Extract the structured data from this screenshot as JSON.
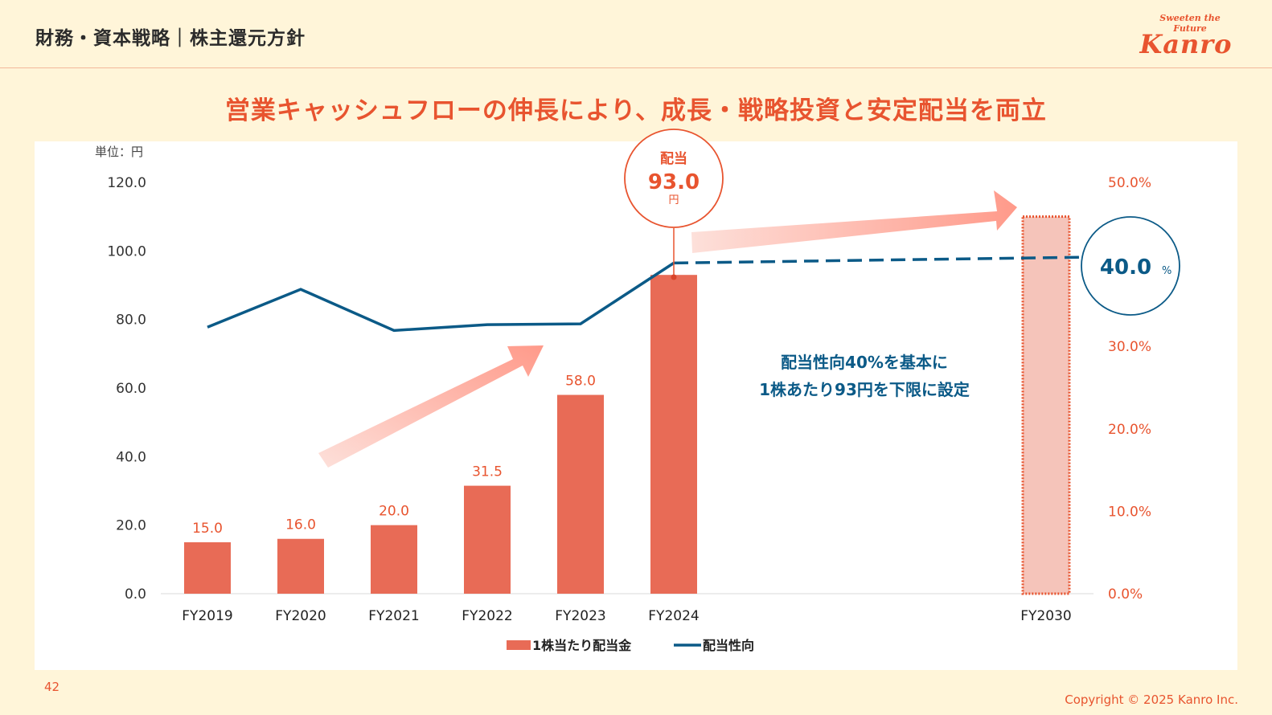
{
  "header": {
    "title": "財務・資本戦略｜株主還元方針",
    "logo_tagline": "Sweeten the Future",
    "logo_name": "Kanro"
  },
  "headline": "営業キャッシュフローの伸長により、成長・戦略投資と安定配当を両立",
  "chart_data": {
    "type": "bar",
    "title": "",
    "unit_label": "単位：円",
    "categories": [
      "FY2019",
      "FY2020",
      "FY2021",
      "FY2022",
      "FY2023",
      "FY2024",
      "FY2030"
    ],
    "series": [
      {
        "name": "1株当たり配当金",
        "type": "bar",
        "axis": "left",
        "color": "#e86b56",
        "values": [
          15.0,
          16.0,
          20.0,
          31.5,
          58.0,
          93.0,
          null
        ],
        "labels": [
          "15.0",
          "16.0",
          "20.0",
          "31.5",
          "58.0",
          "",
          ""
        ]
      },
      {
        "name": "配当性向",
        "type": "line",
        "axis": "right",
        "color": "#0b5a87",
        "values": [
          32.4,
          37.0,
          32.0,
          32.7,
          32.8,
          40.2,
          null
        ],
        "projection": {
          "from": "FY2024",
          "to": "FY2030",
          "values": [
            40.2,
            40.9
          ],
          "style": "dashed"
        }
      }
    ],
    "projected_bar": {
      "category": "FY2030",
      "value_pct_of_left_axis": 110.0,
      "style": "dotted-outline",
      "fill": "#f5c4ba",
      "stroke": "#e8542f"
    },
    "left_axis": {
      "ylim": [
        0,
        120
      ],
      "ticks": [
        "0.0",
        "20.0",
        "40.0",
        "60.0",
        "80.0",
        "100.0",
        "120.0"
      ]
    },
    "right_axis": {
      "ylim": [
        0,
        50
      ],
      "ticks": [
        "0.0%",
        "10.0%",
        "20.0%",
        "30.0%",
        "50.0%"
      ],
      "color": "#e8542f"
    },
    "legend": {
      "position": "bottom",
      "items": [
        "1株当たり配当金",
        "配当性向"
      ]
    },
    "annotations": {
      "dividend_callout": {
        "label": "配当",
        "value": "93.0",
        "unit": "円",
        "category": "FY2024"
      },
      "payout_callout": {
        "value": "40.0",
        "unit": "%"
      },
      "policy_text": [
        "配当性向40%を基本に",
        "1株あたり93円を下限に設定"
      ]
    },
    "grid": false
  },
  "footer": {
    "page_number": "42",
    "copyright": "Copyright © 2025  Kanro Inc."
  }
}
